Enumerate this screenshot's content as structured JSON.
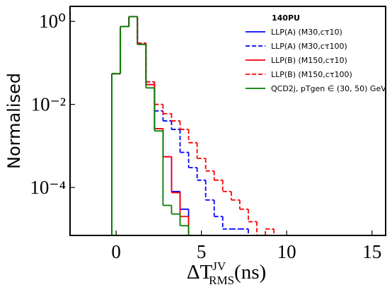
{
  "chart_data": {
    "type": "histogram",
    "x_label": {
      "base": "ΔT",
      "sup": "JV",
      "sub": "RMS",
      "unit": "(ns)"
    },
    "y_label": "Normalised",
    "legend_title": "140PU",
    "legend": "upper right",
    "log_y": true,
    "bins": [
      -0.25,
      0.25,
      0.75,
      1.25,
      1.75,
      2.25,
      2.75,
      3.25,
      3.75,
      4.25,
      4.75,
      5.25,
      5.75,
      6.25,
      6.75,
      7.25,
      7.75,
      8.25,
      8.75,
      9.25
    ],
    "series": [
      {
        "name": "LLP(A) (M30,cτ10)",
        "color": "#0000ff",
        "dashed": false,
        "values": [
          0.055,
          0.75,
          1.3,
          0.28,
          0.03,
          0.0026,
          0.00055,
          8e-05,
          3e-05,
          null,
          null,
          null,
          null,
          null,
          null,
          null,
          null,
          null,
          null
        ]
      },
      {
        "name": "LLP(A) (M30,cτ100)",
        "color": "#0000ff",
        "dashed": true,
        "values": [
          0.055,
          0.75,
          1.3,
          0.3,
          0.035,
          0.007,
          0.004,
          0.0025,
          0.0007,
          0.0003,
          0.00015,
          5e-05,
          2e-05,
          1e-05,
          1e-05,
          1e-05,
          null,
          null,
          null
        ]
      },
      {
        "name": "LLP(B) (M150,cτ10)",
        "color": "#ff0000",
        "dashed": false,
        "values": [
          0.055,
          0.75,
          1.3,
          0.28,
          0.03,
          0.0026,
          0.00055,
          7.5e-05,
          2e-05,
          null,
          null,
          null,
          null,
          null,
          null,
          null,
          null,
          null,
          null
        ]
      },
      {
        "name": "LLP(B) (M150,cτ100)",
        "color": "#ff0000",
        "dashed": true,
        "values": [
          0.055,
          0.75,
          1.3,
          0.3,
          0.035,
          0.01,
          0.006,
          0.004,
          0.0025,
          0.0012,
          0.0005,
          0.00025,
          0.00015,
          8e-05,
          5e-05,
          3e-05,
          1.5e-05,
          null,
          1e-05
        ]
      },
      {
        "name": "QCD2j, pTgen ∈ (30, 50) GeV",
        "color": "#008000",
        "dashed": false,
        "values": [
          0.055,
          0.75,
          1.3,
          0.28,
          0.025,
          0.0023,
          3.7e-05,
          2.3e-05,
          1.2e-05,
          null,
          null,
          null,
          null,
          null,
          null,
          null,
          null,
          null,
          null
        ]
      }
    ],
    "xlim": [
      -2.7,
      15.8
    ],
    "xticks": [
      0,
      5,
      10,
      15
    ],
    "ylim": [
      7e-06,
      2.3
    ],
    "yticks": [
      {
        "value": 1,
        "label": "10⁰"
      },
      {
        "value": 0.01,
        "label": "10⁻²"
      },
      {
        "value": 0.0001,
        "label": "10⁻⁴"
      }
    ]
  }
}
